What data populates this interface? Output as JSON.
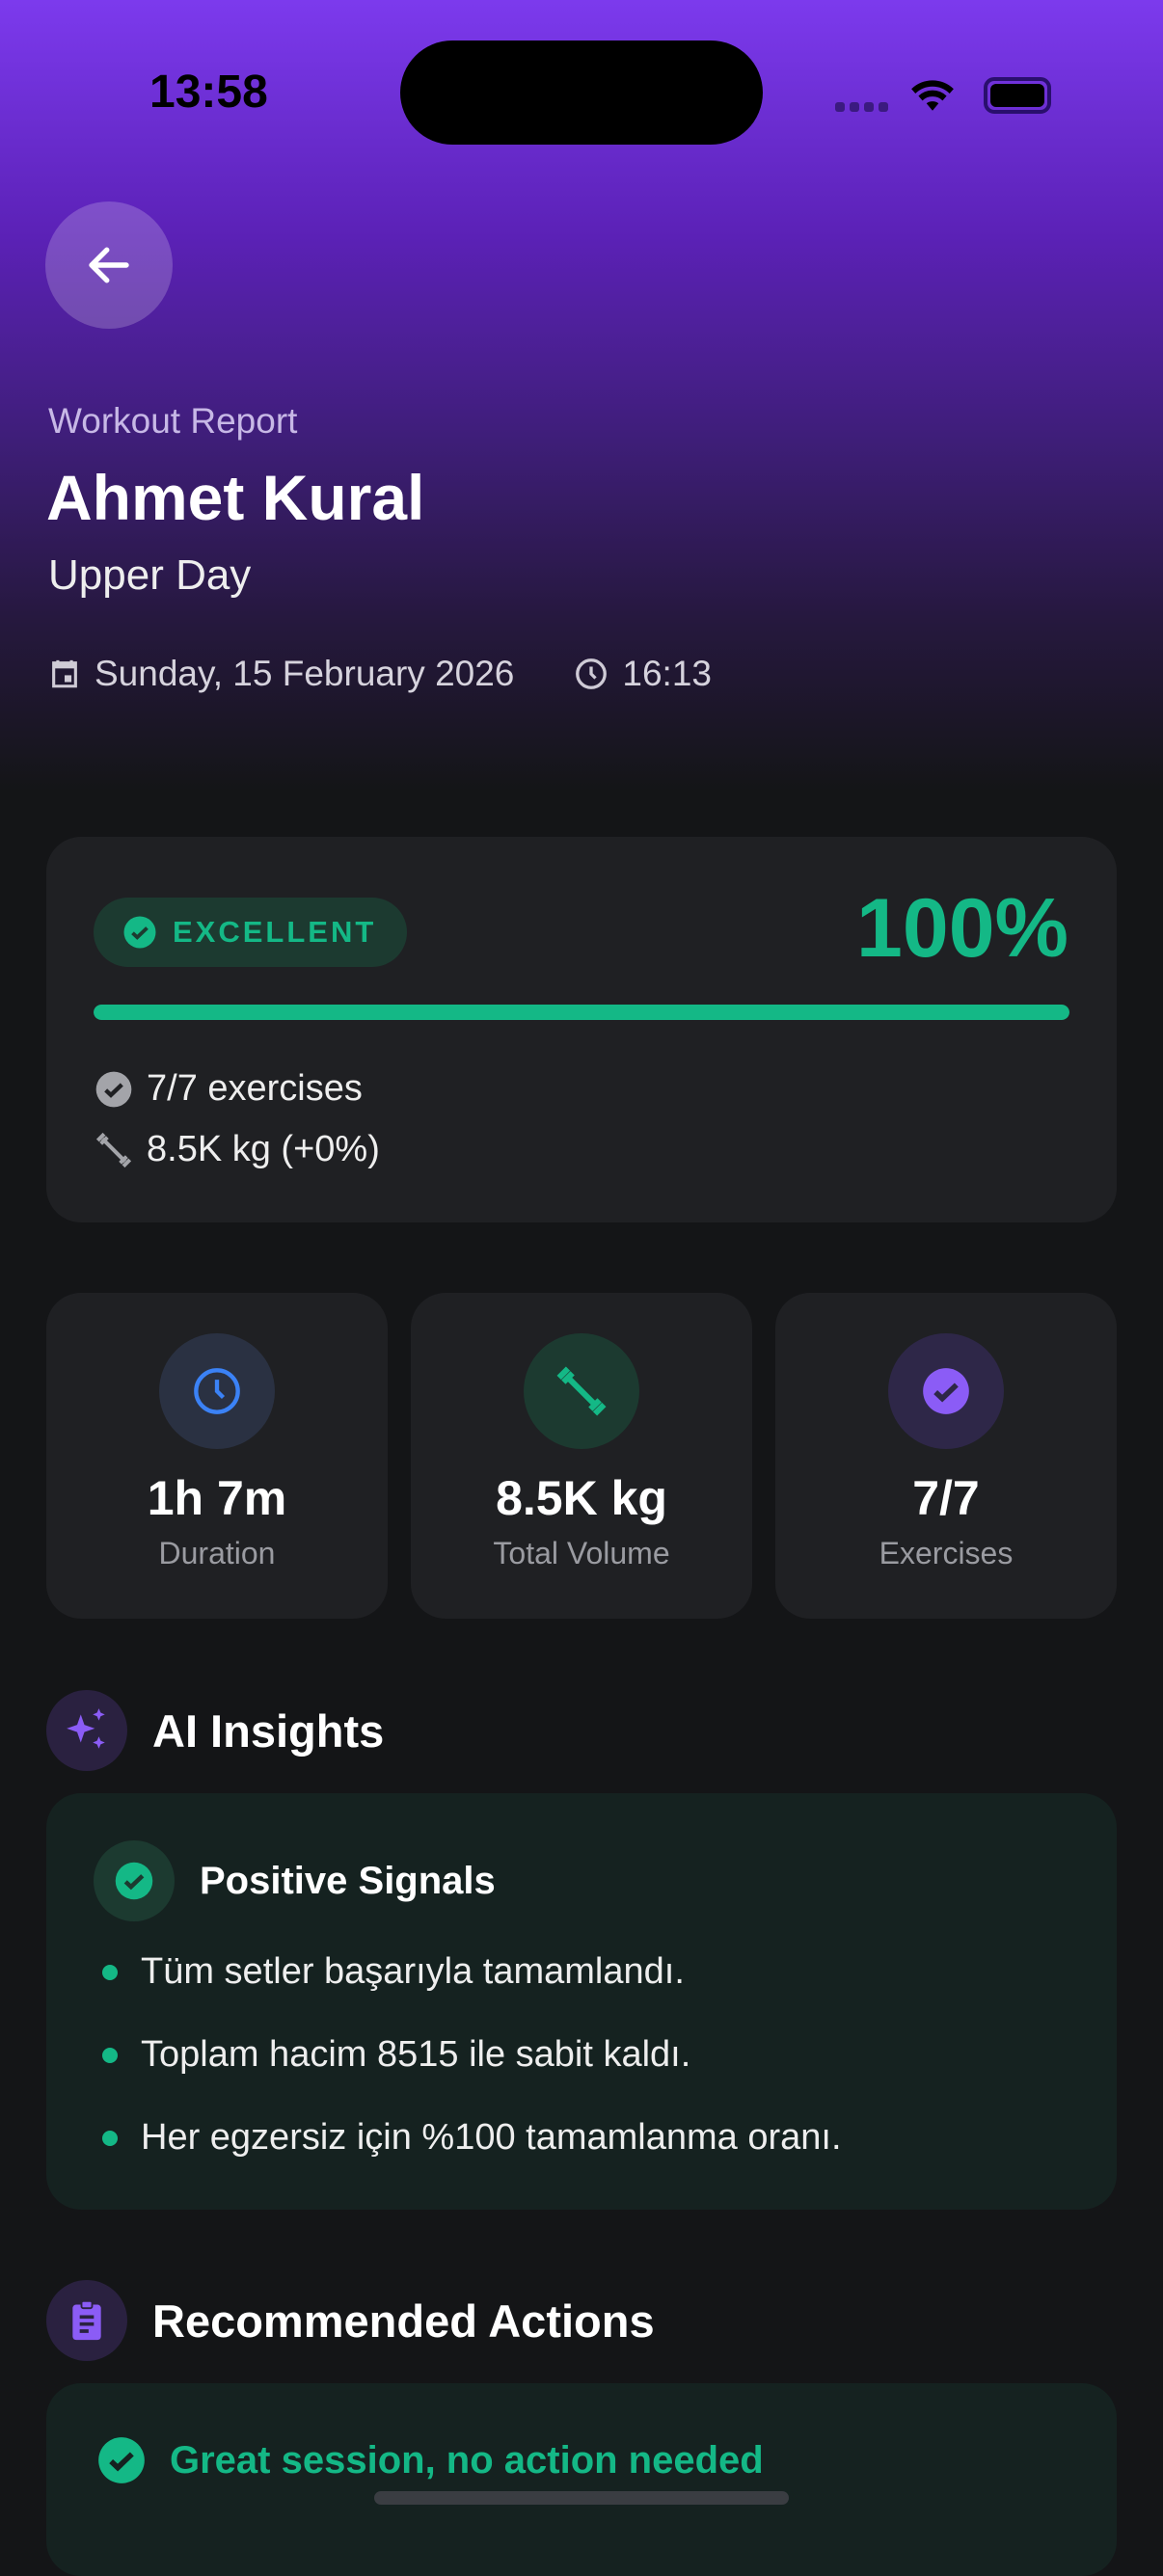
{
  "status_bar": {
    "time": "13:58"
  },
  "header": {
    "subtitle": "Workout Report",
    "name": "Ahmet Kural",
    "workout": "Upper Day",
    "date": "Sunday, 15 February 2026",
    "time": "16:13"
  },
  "score": {
    "badge": "EXCELLENT",
    "percent": "100%",
    "progress": 1.0,
    "exercises": "7/7 exercises",
    "volume": "8.5K kg (+0%)"
  },
  "stats": [
    {
      "value": "1h 7m",
      "label": "Duration",
      "icon": "clock-icon",
      "color": "#3b82f6"
    },
    {
      "value": "8.5K kg",
      "label": "Total Volume",
      "icon": "dumbbell-icon",
      "color": "#14b886"
    },
    {
      "value": "7/7",
      "label": "Exercises",
      "icon": "check-circle-icon",
      "color": "#8b5cf6"
    }
  ],
  "insights": {
    "title": "AI Insights",
    "group_title": "Positive Signals",
    "items": [
      "Tüm setler başarıyla tamamlandı.",
      "Toplam hacim 8515 ile sabit kaldı.",
      "Her egzersiz için %100 tamamlanma oranı."
    ]
  },
  "actions": {
    "title": "Recommended Actions",
    "message": "Great session, no action needed"
  },
  "colors": {
    "accent": "#7c3aed",
    "success": "#14b886",
    "background": "#141517",
    "card": "#1f2023"
  }
}
